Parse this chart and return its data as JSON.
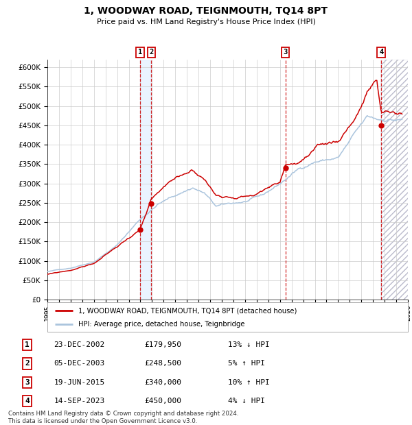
{
  "title": "1, WOODWAY ROAD, TEIGNMOUTH, TQ14 8PT",
  "subtitle": "Price paid vs. HM Land Registry's House Price Index (HPI)",
  "xlim": [
    1995,
    2026
  ],
  "ylim": [
    0,
    620000
  ],
  "yticks": [
    0,
    50000,
    100000,
    150000,
    200000,
    250000,
    300000,
    350000,
    400000,
    450000,
    500000,
    550000,
    600000
  ],
  "hpi_color": "#aac4dd",
  "price_color": "#cc0000",
  "dot_color": "#cc0000",
  "sale_color_fill": "#ddeeff",
  "vline_color": "#cc0000",
  "legend_label_price": "1, WOODWAY ROAD, TEIGNMOUTH, TQ14 8PT (detached house)",
  "legend_label_hpi": "HPI: Average price, detached house, Teignbridge",
  "transactions": [
    {
      "num": 1,
      "date": "23-DEC-2002",
      "year": 2002.98,
      "price": 179950,
      "pct": "13%",
      "dir": "↓",
      "rel": "HPI"
    },
    {
      "num": 2,
      "date": "05-DEC-2003",
      "year": 2003.93,
      "price": 248500,
      "pct": "5%",
      "dir": "↑",
      "rel": "HPI"
    },
    {
      "num": 3,
      "date": "19-JUN-2015",
      "year": 2015.46,
      "price": 340000,
      "pct": "10%",
      "dir": "↑",
      "rel": "HPI"
    },
    {
      "num": 4,
      "date": "14-SEP-2023",
      "year": 2023.71,
      "price": 450000,
      "pct": "4%",
      "dir": "↓",
      "rel": "HPI"
    }
  ],
  "footer": "Contains HM Land Registry data © Crown copyright and database right 2024.\nThis data is licensed under the Open Government Licence v3.0.",
  "background_color": "#ffffff",
  "grid_color": "#cccccc"
}
